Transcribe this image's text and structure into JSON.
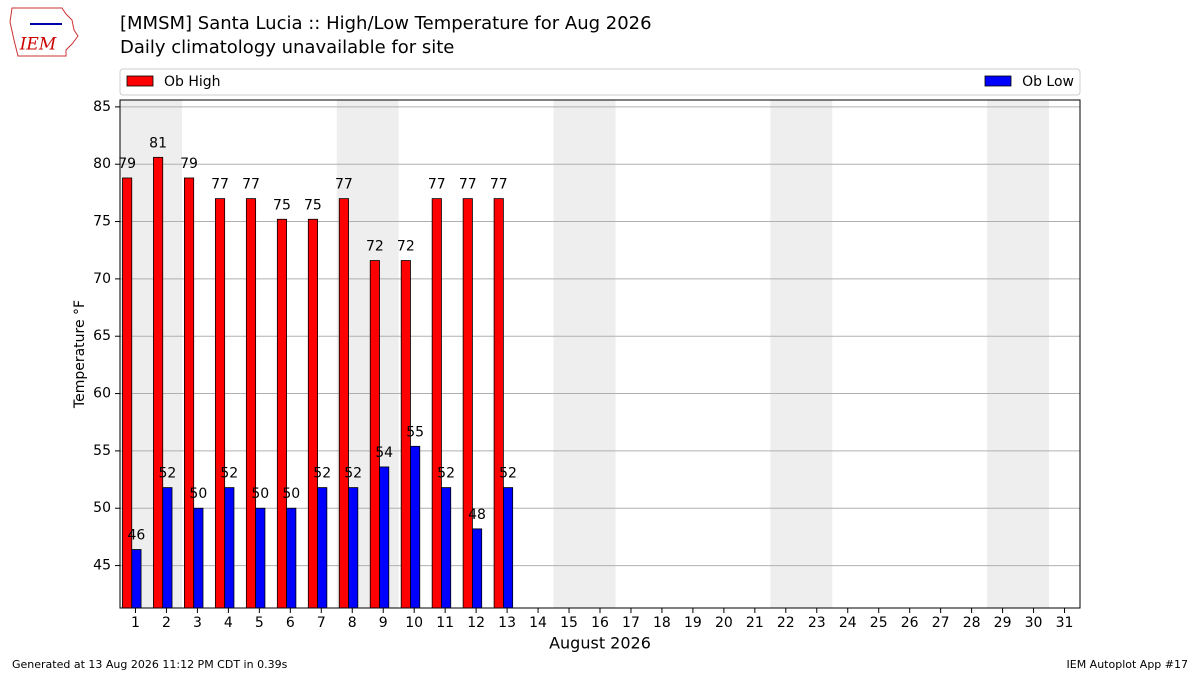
{
  "logo_text": "IEM",
  "footer_left": "Generated at 13 Aug 2026 11:12 PM CDT in 0.39s",
  "footer_right": "IEM Autoplot App #17",
  "chart_data": {
    "type": "bar",
    "title": "[MMSM] Santa Lucia :: High/Low Temperature for Aug 2026",
    "subtitle": "Daily climatology unavailable for site",
    "x_label": "August 2026",
    "y_label": "Temperature °F",
    "categories": [
      "1",
      "2",
      "3",
      "4",
      "5",
      "6",
      "7",
      "8",
      "9",
      "10",
      "11",
      "12",
      "13",
      "14",
      "15",
      "16",
      "17",
      "18",
      "19",
      "20",
      "21",
      "22",
      "23",
      "24",
      "25",
      "26",
      "27",
      "28",
      "29",
      "30",
      "31"
    ],
    "series": [
      {
        "name": "Ob High",
        "color": "#ff0000",
        "values": [
          78.8,
          80.6,
          78.8,
          77,
          77,
          75.2,
          75.2,
          77,
          71.6,
          71.6,
          77,
          77,
          77,
          null,
          null,
          null,
          null,
          null,
          null,
          null,
          null,
          null,
          null,
          null,
          null,
          null,
          null,
          null,
          null,
          null,
          null
        ],
        "value_labels": [
          "79",
          "81",
          "79",
          "77",
          "77",
          "75",
          "75",
          "77",
          "72",
          "72",
          "77",
          "77",
          "77",
          null,
          null,
          null,
          null,
          null,
          null,
          null,
          null,
          null,
          null,
          null,
          null,
          null,
          null,
          null,
          null,
          null,
          null
        ]
      },
      {
        "name": "Ob Low",
        "color": "#0000ff",
        "values": [
          46.4,
          51.8,
          50,
          51.8,
          50,
          50,
          51.8,
          51.8,
          53.6,
          55.4,
          51.8,
          48.2,
          51.8,
          null,
          null,
          null,
          null,
          null,
          null,
          null,
          null,
          null,
          null,
          null,
          null,
          null,
          null,
          null,
          null,
          null,
          null
        ],
        "value_labels": [
          "46",
          "52",
          "50",
          "52",
          "50",
          "50",
          "52",
          "52",
          "54",
          "55",
          "52",
          "48",
          "52",
          null,
          null,
          null,
          null,
          null,
          null,
          null,
          null,
          null,
          null,
          null,
          null,
          null,
          null,
          null,
          null,
          null,
          null
        ]
      }
    ],
    "ylim": [
      41.3,
      85.6
    ],
    "yticks": [
      45,
      50,
      55,
      60,
      65,
      70,
      75,
      80,
      85
    ],
    "grid": true
  }
}
